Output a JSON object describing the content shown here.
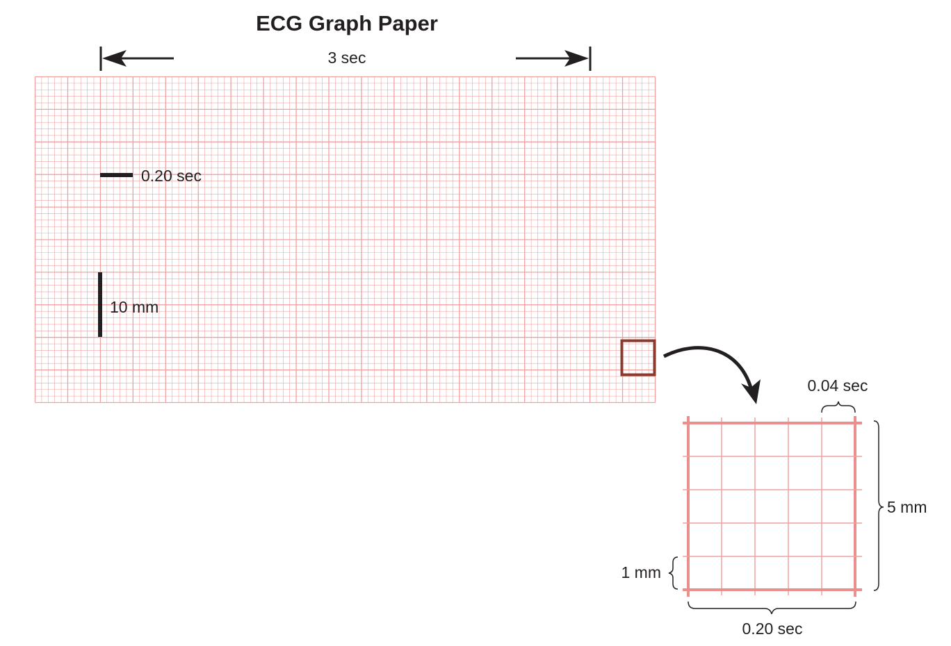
{
  "title": "ECG Graph Paper",
  "duration_label": "3 sec",
  "large_box_time_label": "0.20 sec",
  "amplitude_label": "10 mm",
  "inset": {
    "small_box_time_label": "0.04 sec",
    "large_box_height_label": "5 mm",
    "small_box_height_label": "1 mm",
    "large_box_width_label": "0.20 sec"
  },
  "colors": {
    "grid": "#f1a0a0",
    "grid_heavy": "#eb8e8e",
    "highlight_box": "#8b3a2b",
    "ink": "#231f20"
  }
}
